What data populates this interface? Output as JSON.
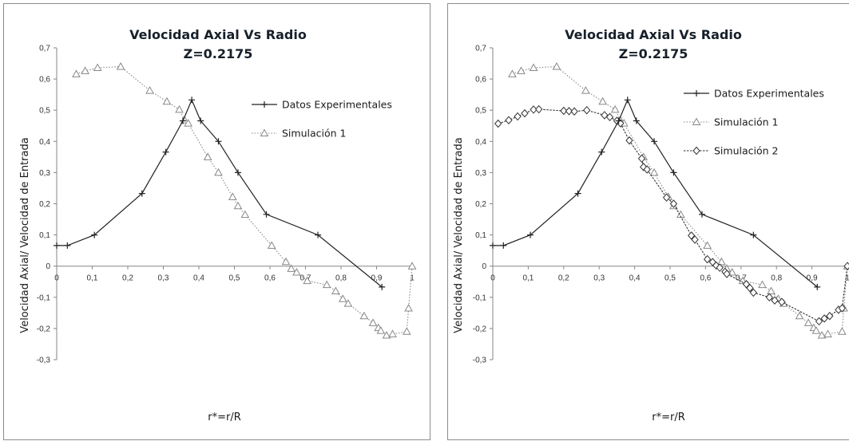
{
  "chart_data": [
    {
      "type": "line",
      "title": [
        "Velocidad Axial Vs Radio",
        "Z=0.2175"
      ],
      "xlabel": "r*=r/R",
      "ylabel": "Velocidad Axial/ Velocidad de Entrada",
      "xlim": [
        0,
        1
      ],
      "ylim": [
        -0.3,
        0.7
      ],
      "xticks": [
        "0",
        "0,1",
        "0,2",
        "0,3",
        "0,4",
        "0,5",
        "0,6",
        "0,7",
        "0,8",
        "0,9",
        "1"
      ],
      "yticks": [
        "0,7",
        "0,6",
        "0,5",
        "0,4",
        "0,3",
        "0,2",
        "0,1",
        "0",
        "-0,1",
        "-0,2",
        "-0,3"
      ],
      "grid": false,
      "legend_position": "top-right",
      "series": [
        {
          "name": "Datos Experimentales",
          "marker": "plus",
          "line_style": "solid",
          "color": "#222222",
          "points": [
            [
              0,
              0.066
            ],
            [
              0.03,
              0.066
            ],
            [
              0.106,
              0.1
            ],
            [
              0.24,
              0.233
            ],
            [
              0.307,
              0.366
            ],
            [
              0.355,
              0.466
            ],
            [
              0.38,
              0.533
            ],
            [
              0.405,
              0.466
            ],
            [
              0.455,
              0.4
            ],
            [
              0.51,
              0.3
            ],
            [
              0.59,
              0.166
            ],
            [
              0.735,
              0.1
            ],
            [
              0.915,
              -0.067
            ]
          ]
        },
        {
          "name": "Simulación 1",
          "marker": "triangle",
          "line_style": "dotted",
          "color": "#888888",
          "points": [
            [
              0.055,
              0.616
            ],
            [
              0.08,
              0.626
            ],
            [
              0.115,
              0.636
            ],
            [
              0.18,
              0.64
            ],
            [
              0.262,
              0.563
            ],
            [
              0.31,
              0.528
            ],
            [
              0.345,
              0.502
            ],
            [
              0.36,
              0.468
            ],
            [
              0.37,
              0.458
            ],
            [
              0.425,
              0.35
            ],
            [
              0.455,
              0.3
            ],
            [
              0.495,
              0.222
            ],
            [
              0.51,
              0.193
            ],
            [
              0.53,
              0.165
            ],
            [
              0.605,
              0.066
            ],
            [
              0.645,
              0.014
            ],
            [
              0.66,
              -0.008
            ],
            [
              0.675,
              -0.02
            ],
            [
              0.705,
              -0.047
            ],
            [
              0.76,
              -0.06
            ],
            [
              0.785,
              -0.08
            ],
            [
              0.805,
              -0.105
            ],
            [
              0.82,
              -0.12
            ],
            [
              0.865,
              -0.16
            ],
            [
              0.89,
              -0.182
            ],
            [
              0.905,
              -0.198
            ],
            [
              0.912,
              -0.207
            ],
            [
              0.928,
              -0.222
            ],
            [
              0.945,
              -0.218
            ],
            [
              0.985,
              -0.21
            ],
            [
              0.99,
              -0.135
            ],
            [
              1.0,
              0
            ]
          ]
        }
      ]
    },
    {
      "type": "line",
      "title": [
        "Velocidad Axial Vs Radio",
        "Z=0.2175"
      ],
      "xlabel": "r*=r/R",
      "ylabel": "Velocidad Axial/ Velocidad de Entrada",
      "xlim": [
        0,
        1
      ],
      "ylim": [
        -0.3,
        0.7
      ],
      "xticks": [
        "0",
        "0,1",
        "0,2",
        "0,3",
        "0,4",
        "0,5",
        "0,6",
        "0,7",
        "0,8",
        "0,9",
        "1"
      ],
      "yticks": [
        "0,7",
        "0,6",
        "0,5",
        "0,4",
        "0,3",
        "0,2",
        "0,1",
        "0",
        "-0,1",
        "-0,2",
        "-0,3"
      ],
      "grid": false,
      "legend_position": "top-right",
      "series": [
        {
          "name": "Datos Experimentales",
          "marker": "plus",
          "line_style": "solid",
          "color": "#222222",
          "points": [
            [
              0,
              0.066
            ],
            [
              0.03,
              0.066
            ],
            [
              0.106,
              0.1
            ],
            [
              0.24,
              0.233
            ],
            [
              0.307,
              0.366
            ],
            [
              0.355,
              0.466
            ],
            [
              0.38,
              0.533
            ],
            [
              0.405,
              0.466
            ],
            [
              0.455,
              0.4
            ],
            [
              0.51,
              0.3
            ],
            [
              0.59,
              0.166
            ],
            [
              0.735,
              0.1
            ],
            [
              0.915,
              -0.067
            ]
          ]
        },
        {
          "name": "Simulación 1",
          "marker": "triangle",
          "line_style": "dotted",
          "color": "#888888",
          "points": [
            [
              0.055,
              0.616
            ],
            [
              0.08,
              0.626
            ],
            [
              0.115,
              0.636
            ],
            [
              0.18,
              0.64
            ],
            [
              0.262,
              0.563
            ],
            [
              0.31,
              0.528
            ],
            [
              0.345,
              0.502
            ],
            [
              0.36,
              0.468
            ],
            [
              0.37,
              0.458
            ],
            [
              0.425,
              0.35
            ],
            [
              0.455,
              0.3
            ],
            [
              0.495,
              0.222
            ],
            [
              0.51,
              0.193
            ],
            [
              0.53,
              0.165
            ],
            [
              0.605,
              0.066
            ],
            [
              0.645,
              0.014
            ],
            [
              0.66,
              -0.008
            ],
            [
              0.675,
              -0.02
            ],
            [
              0.705,
              -0.047
            ],
            [
              0.76,
              -0.06
            ],
            [
              0.785,
              -0.08
            ],
            [
              0.805,
              -0.105
            ],
            [
              0.82,
              -0.12
            ],
            [
              0.865,
              -0.16
            ],
            [
              0.89,
              -0.182
            ],
            [
              0.905,
              -0.198
            ],
            [
              0.912,
              -0.207
            ],
            [
              0.928,
              -0.222
            ],
            [
              0.945,
              -0.218
            ],
            [
              0.985,
              -0.21
            ],
            [
              0.99,
              -0.135
            ],
            [
              1.0,
              0
            ]
          ]
        },
        {
          "name": "Simulación 2",
          "marker": "diamond",
          "line_style": "dashed",
          "color": "#333333",
          "points": [
            [
              0.015,
              0.457
            ],
            [
              0.045,
              0.468
            ],
            [
              0.07,
              0.48
            ],
            [
              0.09,
              0.49
            ],
            [
              0.115,
              0.502
            ],
            [
              0.13,
              0.503
            ],
            [
              0.2,
              0.498
            ],
            [
              0.215,
              0.497
            ],
            [
              0.23,
              0.496
            ],
            [
              0.265,
              0.5
            ],
            [
              0.315,
              0.484
            ],
            [
              0.33,
              0.478
            ],
            [
              0.35,
              0.466
            ],
            [
              0.36,
              0.458
            ],
            [
              0.385,
              0.403
            ],
            [
              0.42,
              0.345
            ],
            [
              0.425,
              0.318
            ],
            [
              0.435,
              0.31
            ],
            [
              0.49,
              0.22
            ],
            [
              0.51,
              0.2
            ],
            [
              0.56,
              0.098
            ],
            [
              0.57,
              0.085
            ],
            [
              0.605,
              0.022
            ],
            [
              0.62,
              0.013
            ],
            [
              0.63,
              0.002
            ],
            [
              0.64,
              -0.005
            ],
            [
              0.655,
              -0.018
            ],
            [
              0.66,
              -0.025
            ],
            [
              0.715,
              -0.058
            ],
            [
              0.725,
              -0.07
            ],
            [
              0.735,
              -0.085
            ],
            [
              0.78,
              -0.1
            ],
            [
              0.795,
              -0.11
            ],
            [
              0.815,
              -0.115
            ],
            [
              0.92,
              -0.177
            ],
            [
              0.935,
              -0.168
            ],
            [
              0.95,
              -0.16
            ],
            [
              0.975,
              -0.14
            ],
            [
              0.985,
              -0.135
            ],
            [
              1.0,
              0.0
            ]
          ]
        }
      ]
    }
  ]
}
